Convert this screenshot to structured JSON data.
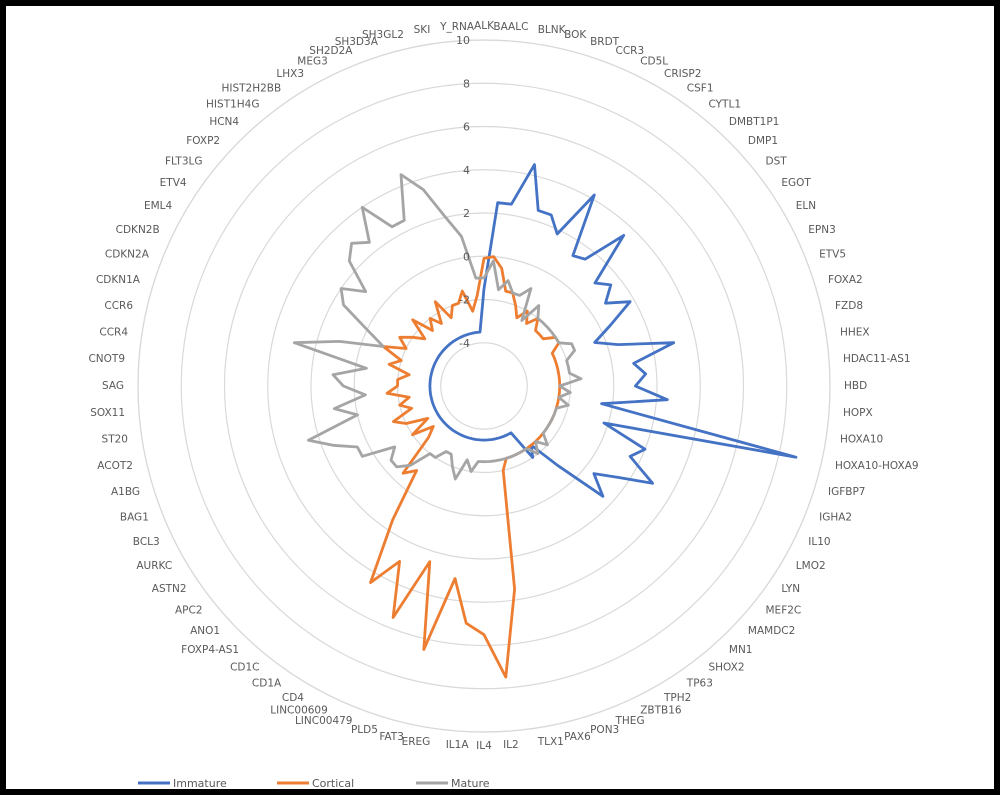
{
  "chart_data": {
    "type": "radar",
    "title": "",
    "rlim": [
      -6,
      10
    ],
    "ticks": [
      -4,
      -2,
      0,
      2,
      4,
      6,
      8,
      10
    ],
    "tick_labels": [
      "-4",
      "-2",
      "0",
      "2",
      "4",
      "6",
      "8",
      "10"
    ],
    "grid": true,
    "legend_position": "bottom-left",
    "categories": [
      "ALK",
      "BAALC",
      "BLNK",
      "BOK",
      "BRDT",
      "CCR3",
      "CD5L",
      "CRISP2",
      "CSF1",
      "CYTL1",
      "DMBT1P1",
      "DMP1",
      "DST",
      "EGOT",
      "ELN",
      "EPN3",
      "ETV5",
      "FOXA2",
      "FZD8",
      "HHEX",
      "HDAC11-AS1",
      "HBD",
      "HOPX",
      "HOXA10",
      "HOXA10-HOXA9",
      "IGFBP7",
      "IGHA2",
      "IL10",
      "LMO2",
      "LYN",
      "MEF2C",
      "MAMDC2",
      "MN1",
      "SHOX2",
      "TP63",
      "TPH2",
      "ZBTB16",
      "THEG",
      "PON3",
      "PAX6",
      "TLX1",
      "IL2",
      "IL4",
      "IL1A",
      "EREG",
      "FAT3",
      "PLD5",
      "LINC00479",
      "LINC00609",
      "CD4",
      "CD1A",
      "CD1C",
      "FOXP4-AS1",
      "ANO1",
      "APC2",
      "ASTN2",
      "AURKC",
      "BCL3",
      "BAG1",
      "A1BG",
      "ACOT2",
      "ST20",
      "SOX11",
      "SAG",
      "CNOT9",
      "CCR4",
      "CCR6",
      "CDKN1A",
      "CDKN2A",
      "CDKN2B",
      "EML4",
      "ETV4",
      "FLT3LG",
      "FOXP2",
      "HCN4",
      "HIST1H4G",
      "HIST2H2BB",
      "LHX3",
      "MEG3",
      "SH2D2A",
      "SH3D3A",
      "SH3GL2",
      "SKI",
      "Y_RNA"
    ],
    "series": [
      {
        "name": "Immature",
        "color": "#4472C4",
        "values": [
          -1.5,
          2.5,
          2.5,
          4.5,
          2.5,
          2.5,
          1.8,
          4.2,
          1.3,
          1.5,
          3.5,
          1.0,
          1.5,
          0.8,
          1.8,
          0.5,
          -0.5,
          0.5,
          3.0,
          1.0,
          1.5,
          1.0,
          2.5,
          -0.5,
          8.8,
          -0.2,
          2.0,
          1.5,
          3.0,
          1.5,
          0.5,
          1.5,
          -1.0,
          -2.5,
          -2.0,
          -3.5,
          -3.5,
          -3.5,
          -3.5,
          -3.5,
          -3.5,
          -3.5,
          -3.5,
          -3.5,
          -3.5,
          -3.5,
          -3.5,
          -3.5,
          -3.5,
          -3.5,
          -3.5,
          -3.5,
          -3.5,
          -3.5,
          -3.5,
          -3.5,
          -3.5,
          -3.5,
          -3.5,
          -3.5,
          -3.5,
          -3.5,
          -3.5,
          -3.5,
          -3.5,
          -3.5,
          -3.5,
          -3.5,
          -3.5,
          -3.5,
          -3.5,
          -3.5,
          -3.5,
          -3.5,
          -3.5,
          -3.5,
          -3.5,
          -3.5,
          -3.5,
          -3.5,
          -3.5,
          -3.5,
          -3.5,
          -3.5
        ]
      },
      {
        "name": "Cortical",
        "color": "#ED7D31",
        "values": [
          -0.1,
          0.0,
          -0.5,
          -1.5,
          -1.5,
          -2.0,
          -2.5,
          -2.0,
          -2.5,
          -2.0,
          -2.5,
          -2.5,
          -2.5,
          -2.0,
          -2.0,
          -2.5,
          -2.5,
          -2.5,
          -2.5,
          -2.5,
          -2.5,
          -2.5,
          -2.5,
          -2.5,
          -2.5,
          -2.5,
          -2.5,
          -2.5,
          -2.5,
          -2.5,
          -2.5,
          -2.5,
          -2.5,
          -2.5,
          -2.5,
          -2.5,
          -2.5,
          -2.5,
          -2.5,
          -2.0,
          3.5,
          7.5,
          5.5,
          5.0,
          3.0,
          6.5,
          2.5,
          5.5,
          3.0,
          4.5,
          1.5,
          -1.0,
          -0.5,
          -2.5,
          -3.0,
          -2.0,
          -3.0,
          -2.0,
          -1.5,
          -2.5,
          -2.0,
          -2.5,
          -1.5,
          -2.0,
          -2.0,
          -2.5,
          -1.5,
          -2.0,
          -1.0,
          -2.0,
          -1.5,
          -2.0,
          -2.5,
          -1.5,
          -2.5,
          -2.0,
          -2.5,
          -1.5,
          -2.5,
          -2.0,
          -2.0,
          -1.5,
          -2.5,
          -1.8
        ]
      },
      {
        "name": "Mature",
        "color": "#A5A5A5",
        "values": [
          -1.0,
          -0.2,
          -1.5,
          -1.0,
          -1.5,
          -1.5,
          -1.0,
          -2.5,
          -1.5,
          -2.0,
          -2.0,
          -2.0,
          -2.0,
          -2.0,
          -2.0,
          -1.5,
          -1.5,
          -2.0,
          -2.0,
          -2.0,
          -1.5,
          -2.5,
          -2.0,
          -2.5,
          -2.0,
          -2.5,
          -2.5,
          -2.5,
          -2.5,
          -2.5,
          -2.5,
          -2.0,
          -2.5,
          -2.0,
          -2.5,
          -2.5,
          -2.5,
          -2.5,
          -2.5,
          -2.5,
          -2.5,
          -2.5,
          -2.5,
          -2.5,
          -2.0,
          -2.5,
          -1.5,
          -2.0,
          -2.5,
          -2.5,
          -2.0,
          -2.0,
          -1.0,
          -0.5,
          -0.5,
          -1.0,
          0.5,
          0.5,
          1.5,
          2.5,
          0.0,
          1.0,
          -0.5,
          0.5,
          1.0,
          -0.5,
          3.0,
          1.0,
          -1.0,
          0.0,
          1.5,
          2.0,
          1.0,
          2.5,
          3.0,
          2.5,
          4.0,
          2.5,
          2.5,
          4.5,
          3.5,
          2.0,
          1.0,
          -1.0
        ]
      }
    ]
  }
}
